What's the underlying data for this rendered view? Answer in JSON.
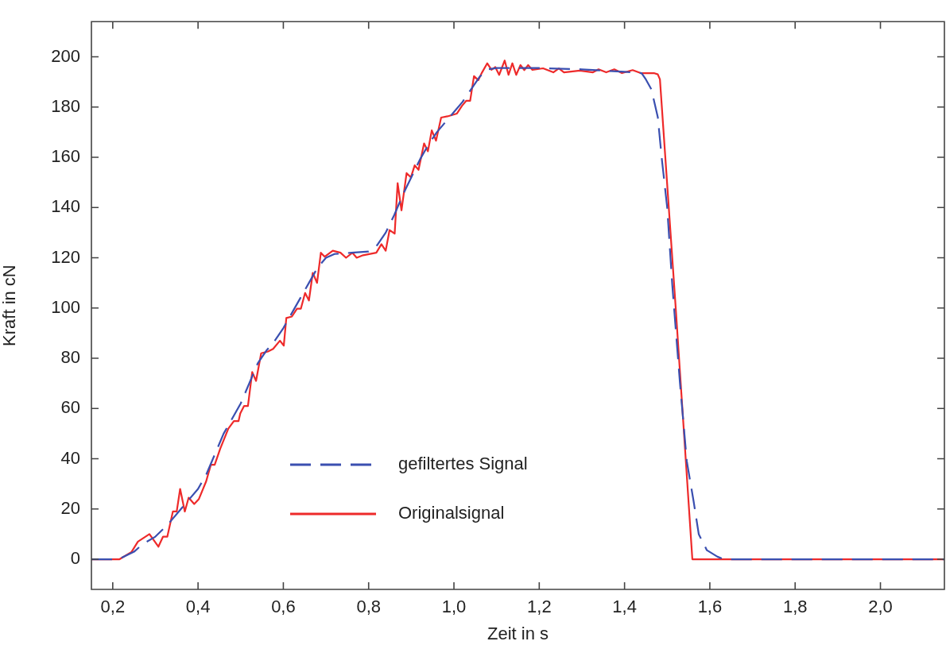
{
  "chart_data": {
    "type": "line",
    "xlabel": "Zeit in s",
    "ylabel": "Kraft in cN",
    "xlim": [
      0.15,
      2.15
    ],
    "ylim": [
      -12,
      214
    ],
    "xticks": [
      {
        "value": 0.2,
        "label": "0,2"
      },
      {
        "value": 0.4,
        "label": "0,4"
      },
      {
        "value": 0.6,
        "label": "0,6"
      },
      {
        "value": 0.8,
        "label": "0,8"
      },
      {
        "value": 1.0,
        "label": "1,0"
      },
      {
        "value": 1.2,
        "label": "1,2"
      },
      {
        "value": 1.4,
        "label": "1,4"
      },
      {
        "value": 1.6,
        "label": "1,6"
      },
      {
        "value": 1.8,
        "label": "1,8"
      },
      {
        "value": 2.0,
        "label": "2,0"
      }
    ],
    "yticks": [
      0,
      20,
      40,
      60,
      80,
      100,
      120,
      140,
      160,
      180,
      200
    ],
    "grid": false,
    "legend": "bottom left",
    "marker": "none",
    "series": [
      {
        "name": "gefiltertes Signal",
        "color": "#3a4fb0",
        "line_style": "dashed",
        "x": [
          0.15,
          0.2,
          0.22,
          0.25,
          0.27,
          0.3,
          0.33,
          0.36,
          0.38,
          0.4,
          0.42,
          0.44,
          0.46,
          0.48,
          0.5,
          0.52,
          0.54,
          0.56,
          0.58,
          0.6,
          0.62,
          0.64,
          0.66,
          0.68,
          0.7,
          0.72,
          0.76,
          0.8,
          0.82,
          0.84,
          0.86,
          0.88,
          0.9,
          0.92,
          0.94,
          0.96,
          0.98,
          1.0,
          1.02,
          1.04,
          1.06,
          1.08,
          1.1,
          1.2,
          1.3,
          1.4,
          1.44,
          1.45,
          1.463,
          1.478,
          1.487,
          1.5,
          1.512,
          1.53,
          1.546,
          1.562,
          1.574,
          1.593,
          1.618,
          1.633,
          2.15
        ],
        "values": [
          0,
          0,
          0.5,
          3,
          6,
          9,
          14,
          20,
          24,
          28,
          34,
          42,
          50,
          56,
          62,
          70,
          78,
          83,
          87,
          92,
          98,
          104,
          110,
          116,
          120,
          121.5,
          122,
          122.5,
          125,
          130,
          137,
          145,
          152,
          159,
          165,
          170,
          174,
          178,
          182,
          187,
          192,
          195,
          195.5,
          195.5,
          195,
          194,
          193.5,
          191,
          187,
          176,
          160,
          140,
          109,
          70,
          39,
          23,
          10,
          3.6,
          1,
          0,
          0
        ]
      },
      {
        "name": "Originalsignal",
        "color": "#ee2a2a",
        "line_style": "solid",
        "x": [
          0.15,
          0.216,
          0.244,
          0.259,
          0.286,
          0.307,
          0.318,
          0.328,
          0.341,
          0.35,
          0.358,
          0.369,
          0.378,
          0.391,
          0.402,
          0.419,
          0.43,
          0.439,
          0.452,
          0.471,
          0.484,
          0.495,
          0.499,
          0.508,
          0.517,
          0.527,
          0.536,
          0.548,
          0.564,
          0.576,
          0.592,
          0.601,
          0.607,
          0.62,
          0.632,
          0.641,
          0.651,
          0.66,
          0.669,
          0.679,
          0.688,
          0.697,
          0.716,
          0.734,
          0.747,
          0.762,
          0.772,
          0.787,
          0.818,
          0.83,
          0.84,
          0.849,
          0.861,
          0.868,
          0.877,
          0.889,
          0.899,
          0.908,
          0.917,
          0.93,
          0.939,
          0.948,
          0.958,
          0.97,
          0.985,
          1.007,
          1.019,
          1.029,
          1.038,
          1.047,
          1.057,
          1.066,
          1.078,
          1.088,
          1.097,
          1.106,
          1.119,
          1.128,
          1.137,
          1.146,
          1.156,
          1.165,
          1.174,
          1.184,
          1.209,
          1.233,
          1.246,
          1.258,
          1.295,
          1.326,
          1.339,
          1.357,
          1.376,
          1.394,
          1.419,
          1.438,
          1.469,
          1.478,
          1.483,
          1.52,
          1.559,
          2.15
        ],
        "values": [
          0,
          0,
          2.9,
          7,
          10,
          5,
          9,
          9,
          19,
          19,
          28,
          19,
          24.5,
          22,
          24,
          31,
          37.6,
          37.6,
          44,
          52,
          55,
          55,
          58,
          61,
          61,
          74.5,
          71,
          82,
          82.7,
          83.7,
          87,
          85,
          96,
          96.6,
          99.7,
          99.7,
          106,
          103,
          114,
          110,
          122,
          120.4,
          122.8,
          122,
          120,
          122,
          120,
          121,
          122,
          125.4,
          122.8,
          131,
          129.6,
          149.7,
          138.9,
          153.7,
          152,
          156.8,
          155,
          165.5,
          162.4,
          170.7,
          166.6,
          175.8,
          176.3,
          177.4,
          180.5,
          182.5,
          182.5,
          192.3,
          190.7,
          193.8,
          197.4,
          194.8,
          195.9,
          192.8,
          198.5,
          192.8,
          197.4,
          192.8,
          196.7,
          194.7,
          196.7,
          194.8,
          195.4,
          193.8,
          195.4,
          193.8,
          194.5,
          193.8,
          195,
          193.8,
          195,
          193.5,
          194.7,
          193.5,
          193.5,
          193,
          191,
          100,
          0,
          0
        ]
      }
    ]
  }
}
